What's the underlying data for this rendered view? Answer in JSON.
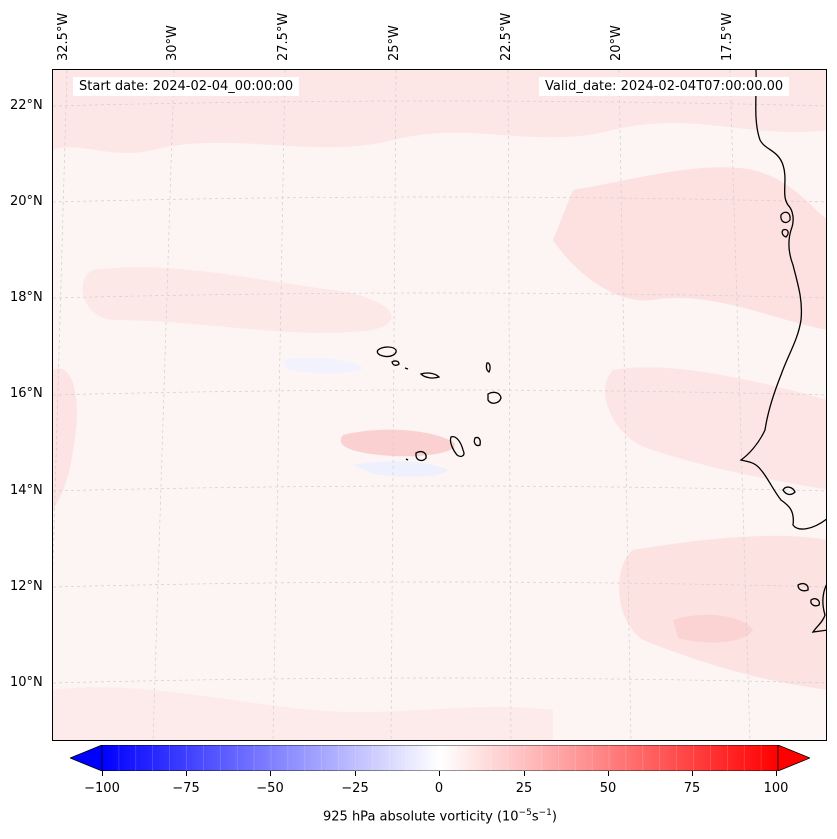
{
  "map": {
    "start_date_label": "Start date: 2024-02-04_00:00:00",
    "valid_date_label": "Valid_date: 2024-02-04T07:00:00.00",
    "longitude_labels": [
      "32.5°W",
      "30°W",
      "27.5°W",
      "25°W",
      "22.5°W",
      "20°W",
      "17.5°W"
    ],
    "latitude_labels": [
      "22°N",
      "20°N",
      "18°N",
      "16°N",
      "14°N",
      "12°N",
      "10°N"
    ],
    "background_color": "#fdf4f4",
    "coastline_color": "#000000"
  },
  "colorbar": {
    "tick_labels": [
      "−100",
      "−75",
      "−50",
      "−25",
      "0",
      "25",
      "50",
      "75",
      "100"
    ],
    "label_prefix": "925 hPa absolute vorticity (10",
    "label_exp1": "−5",
    "label_mid": "s",
    "label_exp2": "−1",
    "label_suffix": ")",
    "min_color": "#0000ff",
    "mid_color": "#ffffff",
    "max_color": "#ff0000"
  }
}
